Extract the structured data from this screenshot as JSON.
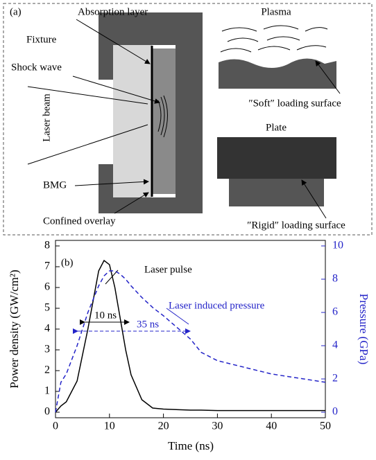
{
  "diagram": {
    "panel_label": "(a)",
    "absorption_layer": "Absorption layer",
    "fixture": "Fixture",
    "shock_wave": "Shock wave",
    "laser_beam": "Laser beam",
    "bmg": "BMG",
    "confined_overlay": "Confined overlay",
    "plasma": "Plasma",
    "soft_surface": "″Soft″ loading surface",
    "plate": "Plate",
    "rigid_surface": "″Rigid″ loading surface"
  },
  "chart_data": {
    "type": "line",
    "panel_label": "(b)",
    "xlabel": "Time (ns)",
    "ylabel": "Power density (GW/cm²)",
    "y2label": "Pressure (GPa)",
    "annotations": [
      "10 ns",
      "35 ns"
    ],
    "x": [
      0,
      1,
      2,
      4,
      6,
      8,
      9,
      10,
      11,
      12,
      13,
      14,
      16,
      18,
      20,
      25,
      27,
      30,
      40,
      50
    ],
    "series": [
      {
        "name": "Laser pulse",
        "color": "#000000",
        "dashed": false,
        "values": [
          0,
          0.3,
          0.5,
          1.5,
          4,
          6.8,
          7.3,
          7.1,
          6,
          4.5,
          3,
          1.8,
          0.6,
          0.2,
          0.15,
          0.1,
          0.1,
          0.08,
          0.08,
          0.08
        ]
      },
      {
        "name": "Laser induced pressure",
        "color": "#2323c8",
        "dashed": true,
        "axis": "y2",
        "values": [
          0,
          1.8,
          2.3,
          4,
          6,
          7.6,
          8.2,
          8.5,
          8.5,
          8.3,
          8,
          7.6,
          6.9,
          6.3,
          5.8,
          4.4,
          3.6,
          3.1,
          2.3,
          1.8
        ]
      }
    ],
    "xlim": [
      0,
      50
    ],
    "xticks": [
      0,
      10,
      20,
      30,
      40,
      50
    ],
    "ylim": [
      0,
      8
    ],
    "yticks": [
      0,
      1,
      2,
      3,
      4,
      5,
      6,
      7,
      8
    ],
    "y2lim": [
      0,
      10
    ],
    "y2ticks": [
      0,
      2,
      4,
      6,
      8,
      10
    ],
    "y2color": "#2323c8"
  }
}
